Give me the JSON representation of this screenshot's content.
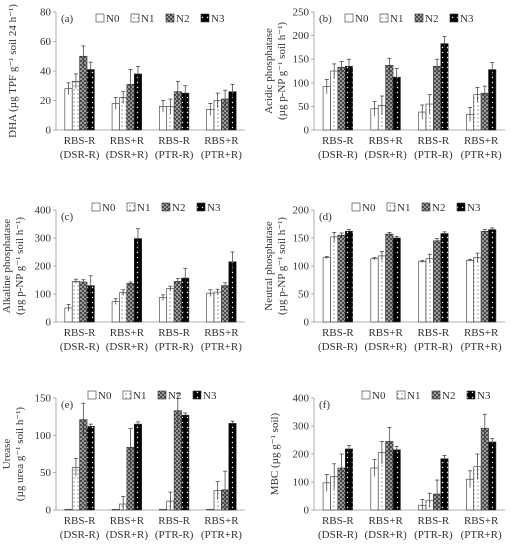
{
  "figure": {
    "categories": [
      [
        "RBS-R",
        "(DSR-R)"
      ],
      [
        "RBS+R",
        "(DSR+R)"
      ],
      [
        "RBS-R",
        "(PTR-R)"
      ],
      [
        "RBS+R",
        "(PTR+R)"
      ]
    ],
    "legend": [
      "N0",
      "N1",
      "N2",
      "N3"
    ],
    "series_colors": {
      "N0": "#ffffff",
      "N1": "#ffffff",
      "N2": "#8a8a8a",
      "N3": "#000000"
    },
    "series_patterns": {
      "N0": "plain",
      "N1": "dotted",
      "N2": "checkered",
      "N3": "black-with-white-dots"
    }
  },
  "chart_data": [
    {
      "type": "bar",
      "panel": "(a)",
      "ylabel": "DHA (µg TPF g⁻¹ soil 24 h⁻¹)",
      "ylim": [
        0,
        80
      ],
      "yticks": [
        "0",
        "20",
        "40",
        "60",
        "80"
      ],
      "categories": [
        "RBS-R (DSR-R)",
        "RBS+R (DSR+R)",
        "RBS-R (PTR-R)",
        "RBS+R (PTR+R)"
      ],
      "series": [
        {
          "name": "N0",
          "values": [
            28,
            18,
            16,
            14
          ],
          "errors": [
            4,
            4,
            4,
            4
          ]
        },
        {
          "name": "N1",
          "values": [
            33,
            22,
            16,
            20
          ],
          "errors": [
            5,
            4,
            5,
            5
          ]
        },
        {
          "name": "N2",
          "values": [
            50,
            31,
            26,
            21
          ],
          "errors": [
            7,
            10,
            7,
            6
          ]
        },
        {
          "name": "N3",
          "values": [
            41,
            38,
            25,
            26
          ],
          "errors": [
            5,
            5,
            5,
            5
          ]
        }
      ],
      "legend_position": "top"
    },
    {
      "type": "bar",
      "panel": "(b)",
      "ylabel": "Acidic phosphatase (µg p-NP g⁻¹ soil h⁻¹)",
      "ylim": [
        0,
        250
      ],
      "yticks": [
        "0",
        "50",
        "100",
        "150",
        "200",
        "250"
      ],
      "categories": [
        "RBS-R (DSR-R)",
        "RBS+R (DSR+R)",
        "RBS-R (PTR-R)",
        "RBS+R (PTR+R)"
      ],
      "series": [
        {
          "name": "N0",
          "values": [
            92,
            45,
            38,
            33
          ],
          "errors": [
            15,
            15,
            15,
            15
          ]
        },
        {
          "name": "N1",
          "values": [
            125,
            52,
            55,
            75
          ],
          "errors": [
            15,
            20,
            20,
            15
          ]
        },
        {
          "name": "N2",
          "values": [
            133,
            137,
            135,
            78
          ],
          "errors": [
            12,
            15,
            15,
            15
          ]
        },
        {
          "name": "N3",
          "values": [
            135,
            112,
            183,
            128
          ],
          "errors": [
            15,
            18,
            15,
            15
          ]
        }
      ],
      "legend_position": "top"
    },
    {
      "type": "bar",
      "panel": "(c)",
      "ylabel": "Alkaline phosphatase (µg p-NP g⁻¹ soil h⁻¹)",
      "ylim": [
        0,
        400
      ],
      "yticks": [
        "0",
        "100",
        "200",
        "300",
        "400"
      ],
      "categories": [
        "RBS-R (DSR-R)",
        "RBS+R (DSR+R)",
        "RBS-R (PTR-R)",
        "RBS+R (PTR+R)"
      ],
      "series": [
        {
          "name": "N0",
          "values": [
            50,
            73,
            87,
            103
          ],
          "errors": [
            12,
            10,
            10,
            12
          ]
        },
        {
          "name": "N1",
          "values": [
            145,
            105,
            120,
            107
          ],
          "errors": [
            8,
            10,
            8,
            10
          ]
        },
        {
          "name": "N2",
          "values": [
            143,
            138,
            145,
            130
          ],
          "errors": [
            8,
            5,
            10,
            10
          ]
        },
        {
          "name": "N3",
          "values": [
            130,
            298,
            157,
            215
          ],
          "errors": [
            35,
            35,
            35,
            35
          ]
        }
      ],
      "legend_position": "top"
    },
    {
      "type": "bar",
      "panel": "(d)",
      "ylabel": "Neutral phosphatase (µg p-NP g⁻¹ soil h⁻¹)",
      "ylim": [
        0,
        200
      ],
      "yticks": [
        "0",
        "50",
        "100",
        "150",
        "200"
      ],
      "categories": [
        "RBS-R (DSR-R)",
        "RBS+R (DSR+R)",
        "RBS-R (PTR-R)",
        "RBS+R (PTR+R)"
      ],
      "series": [
        {
          "name": "N0",
          "values": [
            115,
            113,
            108,
            110
          ],
          "errors": [
            2,
            2,
            2,
            2
          ]
        },
        {
          "name": "N1",
          "values": [
            152,
            118,
            113,
            115
          ],
          "errors": [
            8,
            8,
            8,
            8
          ]
        },
        {
          "name": "N2",
          "values": [
            155,
            157,
            145,
            162
          ],
          "errors": [
            4,
            3,
            4,
            3
          ]
        },
        {
          "name": "N3",
          "values": [
            162,
            150,
            158,
            165
          ],
          "errors": [
            3,
            3,
            3,
            3
          ]
        }
      ],
      "legend_position": "top"
    },
    {
      "type": "bar",
      "panel": "(e)",
      "ylabel": "Urease (µg urea g⁻¹ soil h⁻¹)",
      "ylim": [
        0,
        150
      ],
      "yticks": [
        "0",
        "50",
        "100",
        "150"
      ],
      "categories": [
        "RBS-R (DSR-R)",
        "RBS+R (DSR+R)",
        "RBS-R (PTR-R)",
        "RBS+R (PTR+R)"
      ],
      "series": [
        {
          "name": "N0",
          "values": [
            1,
            1,
            1,
            1
          ],
          "errors": [
            0,
            0,
            0,
            0
          ]
        },
        {
          "name": "N1",
          "values": [
            57,
            8,
            12,
            26
          ],
          "errors": [
            12,
            10,
            12,
            12
          ]
        },
        {
          "name": "N2",
          "values": [
            121,
            84,
            133,
            27
          ],
          "errors": [
            22,
            25,
            23,
            25
          ]
        },
        {
          "name": "N3",
          "values": [
            112,
            115,
            127,
            116
          ],
          "errors": [
            3,
            3,
            3,
            3
          ]
        }
      ],
      "legend_position": "top"
    },
    {
      "type": "bar",
      "panel": "(f)",
      "ylabel": "MBC (µg g⁻¹ soil)",
      "ylim": [
        0,
        400
      ],
      "yticks": [
        "0",
        "100",
        "200",
        "300",
        "400"
      ],
      "categories": [
        "RBS-R (DSR-R)",
        "RBS+R (DSR+R)",
        "RBS-R (PTR-R)",
        "RBS+R (PTR+R)"
      ],
      "series": [
        {
          "name": "N0",
          "values": [
            97,
            150,
            17,
            110
          ],
          "errors": [
            30,
            30,
            20,
            30
          ]
        },
        {
          "name": "N1",
          "values": [
            120,
            205,
            35,
            155
          ],
          "errors": [
            45,
            40,
            25,
            45
          ]
        },
        {
          "name": "N2",
          "values": [
            150,
            245,
            57,
            292
          ],
          "errors": [
            50,
            50,
            50,
            50
          ]
        },
        {
          "name": "N3",
          "values": [
            218,
            215,
            183,
            243
          ],
          "errors": [
            12,
            12,
            12,
            12
          ]
        }
      ],
      "legend_position": "top"
    }
  ]
}
